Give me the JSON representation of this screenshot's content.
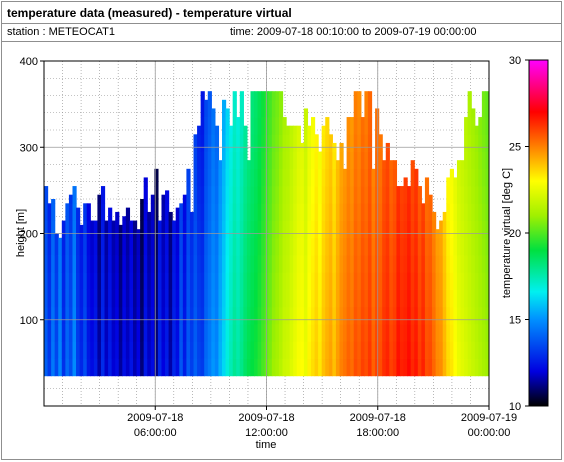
{
  "header": {
    "title": "temperature data (measured) - temperature virtual",
    "station": "station : METEOCAT1",
    "time_range": "time: 2009-07-18 00:10:00 to 2009-07-19 00:00:00"
  },
  "chart_data": {
    "type": "heatmap",
    "title": "temperature data (measured) - temperature virtual",
    "xlabel": "time",
    "ylabel": "height [m]",
    "colorbar_label": "temperature virtual [deg C]",
    "x_ticks": [
      {
        "line1": "2009-07-18",
        "line2": "06:00:00",
        "hours": 6
      },
      {
        "line1": "2009-07-18",
        "line2": "12:00:00",
        "hours": 12
      },
      {
        "line1": "2009-07-18",
        "line2": "18:00:00",
        "hours": 18
      },
      {
        "line1": "2009-07-19",
        "line2": "00:00:00",
        "hours": 24
      }
    ],
    "xlim_hours": [
      0,
      24
    ],
    "y_ticks": [
      "100",
      "200",
      "300",
      "400"
    ],
    "ylim": [
      0,
      400
    ],
    "colorbar_ticks": [
      "10",
      "15",
      "20",
      "25",
      "30"
    ],
    "clim": [
      10,
      30
    ],
    "profile_bottom_m": 35,
    "profile_top_m": [
      255,
      235,
      240,
      200,
      195,
      215,
      235,
      245,
      255,
      230,
      210,
      235,
      235,
      215,
      215,
      245,
      255,
      215,
      230,
      215,
      225,
      210,
      220,
      230,
      215,
      215,
      205,
      240,
      265,
      225,
      245,
      275,
      215,
      245,
      250,
      225,
      215,
      230,
      235,
      245,
      275,
      225,
      315,
      325,
      365,
      355,
      365,
      345,
      325,
      285,
      355,
      345,
      325,
      365,
      335,
      365,
      325,
      285,
      365,
      365,
      365,
      365,
      365,
      365,
      365,
      365,
      365,
      335,
      325,
      325,
      325,
      325,
      305,
      345,
      325,
      335,
      315,
      295,
      325,
      335,
      315,
      305,
      285,
      305,
      275,
      335,
      335,
      365,
      365,
      335,
      365,
      365,
      275,
      345,
      315,
      285,
      305,
      285,
      285,
      255,
      255,
      265,
      255,
      285,
      275,
      255,
      235,
      265,
      245,
      225,
      205,
      215,
      225,
      265,
      275,
      265,
      285,
      285,
      335,
      365,
      345,
      325,
      335,
      365,
      365
    ],
    "values_degC": [
      14.0,
      13.2,
      14.5,
      13.5,
      14.8,
      13.0,
      14.2,
      13.6,
      14.9,
      13.3,
      12.8,
      13.6,
      12.5,
      12.2,
      12.6,
      11.5,
      12.9,
      11.8,
      12.6,
      11.9,
      12.2,
      11.4,
      12.3,
      11.8,
      12.4,
      11.6,
      12.1,
      11.1,
      12.5,
      11.8,
      12.2,
      11.2,
      12.8,
      12.0,
      12.6,
      11.5,
      12.8,
      12.3,
      13.8,
      12.6,
      13.9,
      13.3,
      14.0,
      13.4,
      13.2,
      14.2,
      14.6,
      15.1,
      14.8,
      15.6,
      16.2,
      16.9,
      17.4,
      17.9,
      17.6,
      18.0,
      18.5,
      18.8,
      19.0,
      19.2,
      19.5,
      19.9,
      20.3,
      20.6,
      21.0,
      21.2,
      21.5,
      21.9,
      22.0,
      22.3,
      22.6,
      22.9,
      23.0,
      22.6,
      23.2,
      23.5,
      23.8,
      23.4,
      24.0,
      24.3,
      24.5,
      24.0,
      24.6,
      25.0,
      25.2,
      25.5,
      25.3,
      25.8,
      25.6,
      26.0,
      25.8,
      26.2,
      25.5,
      26.0,
      25.8,
      26.3,
      26.5,
      26.0,
      26.2,
      26.8,
      26.5,
      26.6,
      26.9,
      26.4,
      26.7,
      26.1,
      26.5,
      25.8,
      25.9,
      25.4,
      24.9,
      24.8,
      24.2,
      23.6,
      23.4,
      23.0,
      22.6,
      22.4,
      22.2,
      22.0,
      21.8,
      21.6,
      21.4,
      21.2,
      21.0
    ],
    "levels_m": [
      35,
      55,
      75,
      95,
      115,
      135,
      155,
      175,
      195,
      215,
      235,
      255,
      275,
      295,
      315,
      335,
      355,
      375
    ],
    "grid": true
  }
}
